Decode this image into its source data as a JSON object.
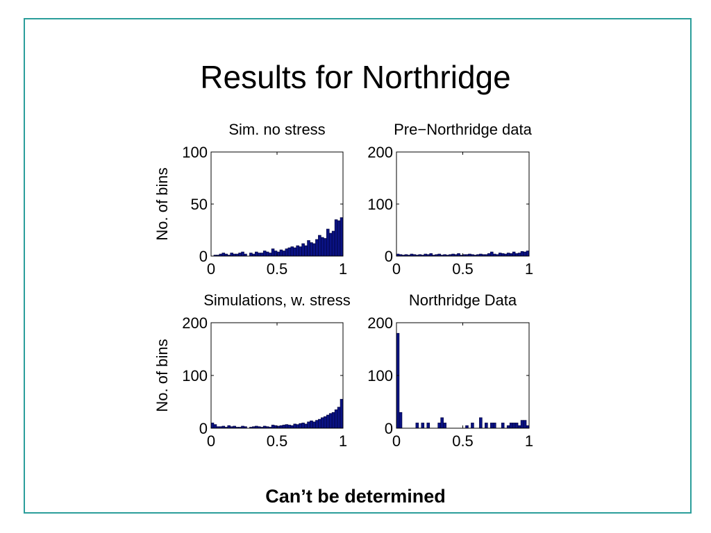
{
  "slide": {
    "title": "Results for Northridge",
    "caption": "Can’t be determined"
  },
  "colors": {
    "frame": "#2a9d9a",
    "bar": "#0a1283",
    "bar_edge": "#000033"
  },
  "chart_data": [
    {
      "type": "bar",
      "title": "Sim. no stress",
      "ylabel": "No. of bins",
      "xlim": [
        0,
        1
      ],
      "ylim": [
        0,
        100
      ],
      "xticks": [
        "0",
        "0.5",
        "1"
      ],
      "yticks": [
        "0",
        "50",
        "100"
      ],
      "values": [
        0,
        1,
        1,
        2,
        3,
        2,
        1,
        3,
        2,
        2,
        3,
        4,
        2,
        0,
        3,
        2,
        4,
        3,
        3,
        5,
        4,
        3,
        7,
        5,
        4,
        6,
        5,
        7,
        8,
        9,
        8,
        10,
        9,
        12,
        10,
        15,
        13,
        12,
        16,
        20,
        18,
        17,
        26,
        22,
        24,
        35,
        34,
        37
      ]
    },
    {
      "type": "bar",
      "title": "Pre−Northridge data",
      "ylabel": "",
      "xlim": [
        0,
        1
      ],
      "ylim": [
        0,
        200
      ],
      "xticks": [
        "0",
        "0.5",
        "1"
      ],
      "yticks": [
        "0",
        "100",
        "200"
      ],
      "values": [
        4,
        3,
        2,
        3,
        2,
        4,
        3,
        2,
        3,
        2,
        4,
        3,
        5,
        2,
        3,
        4,
        2,
        3,
        2,
        3,
        4,
        3,
        5,
        2,
        3,
        3,
        4,
        3,
        2,
        3,
        4,
        3,
        3,
        5,
        8,
        4,
        3,
        6,
        5,
        4,
        6,
        5,
        8,
        5,
        6,
        9,
        8,
        10
      ]
    },
    {
      "type": "bar",
      "title": "Simulations, w. stress",
      "ylabel": "No. of bins",
      "xlim": [
        0,
        1
      ],
      "ylim": [
        0,
        200
      ],
      "xticks": [
        "0",
        "0.5",
        "1"
      ],
      "yticks": [
        "0",
        "100",
        "200"
      ],
      "values": [
        10,
        7,
        3,
        3,
        4,
        2,
        5,
        3,
        4,
        2,
        2,
        4,
        3,
        0,
        2,
        3,
        4,
        3,
        2,
        4,
        3,
        2,
        6,
        5,
        4,
        5,
        6,
        7,
        6,
        5,
        8,
        7,
        9,
        10,
        8,
        12,
        14,
        12,
        15,
        17,
        20,
        22,
        25,
        28,
        30,
        35,
        40,
        55
      ]
    },
    {
      "type": "bar",
      "title": "Northridge Data",
      "ylabel": "",
      "xlim": [
        0,
        1
      ],
      "ylim": [
        0,
        200
      ],
      "xticks": [
        "0",
        "0.5",
        "1"
      ],
      "yticks": [
        "0",
        "100",
        "200"
      ],
      "values": [
        180,
        30,
        0,
        0,
        0,
        0,
        0,
        10,
        0,
        10,
        0,
        10,
        0,
        0,
        0,
        10,
        20,
        10,
        0,
        0,
        0,
        0,
        0,
        0,
        0,
        5,
        0,
        10,
        0,
        0,
        20,
        0,
        10,
        0,
        10,
        10,
        0,
        0,
        10,
        0,
        5,
        10,
        10,
        10,
        5,
        15,
        15,
        5
      ]
    }
  ]
}
